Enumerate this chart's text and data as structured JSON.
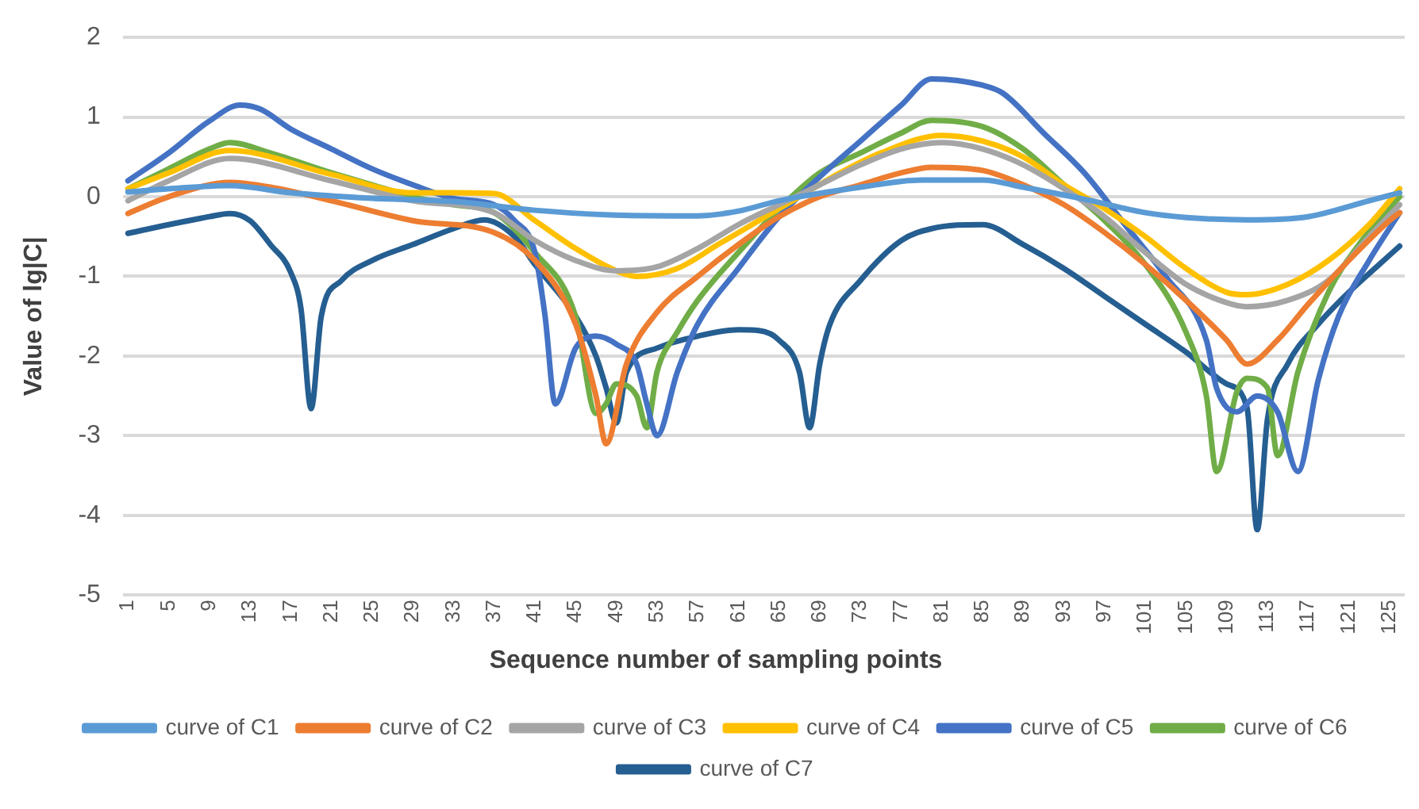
{
  "chart_data": {
    "type": "line",
    "xlabel": "Sequence number of sampling points",
    "ylabel": "Value of lg|C|",
    "xlim": [
      0.5,
      126.5
    ],
    "xticks": [
      1,
      5,
      9,
      13,
      17,
      21,
      25,
      29,
      33,
      37,
      41,
      45,
      49,
      53,
      57,
      61,
      65,
      69,
      73,
      77,
      81,
      85,
      89,
      93,
      97,
      101,
      105,
      109,
      113,
      117,
      121,
      125
    ],
    "ylim": [
      -5,
      2
    ],
    "yticks": [
      -5,
      -4,
      -3,
      -2,
      -1,
      0,
      1,
      2
    ],
    "grid": "y",
    "legend": "bottom",
    "series": [
      {
        "name": "curve of C1",
        "color": "#5b9bd5",
        "x": [
          1,
          5,
          11,
          17,
          25,
          33,
          41,
          49,
          57,
          61,
          65,
          73,
          79,
          85,
          89,
          95,
          101,
          105,
          111,
          117,
          123,
          126
        ],
        "values": [
          0.06,
          0.1,
          0.14,
          0.05,
          -0.02,
          -0.06,
          -0.17,
          -0.23,
          -0.24,
          -0.18,
          -0.05,
          0.12,
          0.21,
          0.21,
          0.12,
          -0.03,
          -0.2,
          -0.26,
          -0.29,
          -0.25,
          -0.05,
          0.05
        ]
      },
      {
        "name": "curve of C2",
        "color": "#ed7d31",
        "x": [
          1,
          5,
          11,
          15,
          21,
          29,
          37,
          41,
          45,
          47,
          48,
          50,
          53,
          57,
          61,
          65,
          69,
          73,
          77,
          80,
          85,
          89,
          93,
          97,
          101,
          105,
          109,
          111,
          114,
          117,
          121,
          125,
          126
        ],
        "values": [
          -0.21,
          0.0,
          0.18,
          0.12,
          -0.05,
          -0.3,
          -0.45,
          -0.8,
          -1.6,
          -2.5,
          -3.1,
          -2.1,
          -1.45,
          -1.0,
          -0.6,
          -0.25,
          0.0,
          0.15,
          0.3,
          0.37,
          0.33,
          0.15,
          -0.1,
          -0.45,
          -0.85,
          -1.3,
          -1.8,
          -2.1,
          -1.8,
          -1.35,
          -0.8,
          -0.3,
          -0.2
        ]
      },
      {
        "name": "curve of C3",
        "color": "#a5a5a5",
        "x": [
          1,
          5,
          11,
          21,
          29,
          37,
          41,
          45,
          49,
          53,
          57,
          61,
          65,
          69,
          73,
          77,
          81,
          85,
          89,
          93,
          97,
          101,
          105,
          109,
          111,
          115,
          119,
          123,
          126
        ],
        "values": [
          -0.05,
          0.2,
          0.48,
          0.2,
          -0.05,
          -0.2,
          -0.55,
          -0.8,
          -0.93,
          -0.88,
          -0.65,
          -0.35,
          -0.1,
          0.15,
          0.4,
          0.6,
          0.68,
          0.6,
          0.4,
          0.1,
          -0.25,
          -0.7,
          -1.1,
          -1.33,
          -1.38,
          -1.3,
          -1.05,
          -0.5,
          -0.1
        ]
      },
      {
        "name": "curve of C4",
        "color": "#ffc000",
        "x": [
          1,
          5,
          11,
          21,
          29,
          33,
          37,
          41,
          45,
          49,
          51,
          55,
          59,
          63,
          67,
          71,
          75,
          81,
          85,
          89,
          93,
          97,
          101,
          105,
          109,
          111,
          115,
          119,
          123,
          126
        ],
        "values": [
          0.1,
          0.3,
          0.58,
          0.28,
          0.05,
          0.05,
          0.04,
          -0.3,
          -0.65,
          -0.93,
          -1.0,
          -0.9,
          -0.6,
          -0.3,
          0.0,
          0.3,
          0.55,
          0.77,
          0.7,
          0.5,
          0.15,
          -0.15,
          -0.5,
          -0.9,
          -1.2,
          -1.23,
          -1.1,
          -0.8,
          -0.35,
          0.1
        ]
      },
      {
        "name": "curve of C5",
        "color": "#4472c4",
        "x": [
          1,
          5,
          9,
          12,
          14,
          17,
          21,
          25,
          29,
          33,
          37,
          39,
          41,
          42,
          43,
          45,
          47,
          49,
          51,
          52,
          53,
          55,
          57,
          61,
          65,
          69,
          73,
          77,
          80,
          85,
          87,
          91,
          95,
          99,
          103,
          107,
          108,
          110,
          112,
          114,
          116,
          118,
          120,
          123,
          126
        ],
        "values": [
          0.2,
          0.55,
          0.95,
          1.15,
          1.1,
          0.85,
          0.6,
          0.35,
          0.15,
          -0.02,
          -0.1,
          -0.3,
          -0.7,
          -1.5,
          -2.6,
          -1.9,
          -1.75,
          -1.85,
          -2.1,
          -2.6,
          -3.0,
          -2.2,
          -1.6,
          -0.9,
          -0.25,
          0.25,
          0.7,
          1.15,
          1.48,
          1.4,
          1.3,
          0.8,
          0.3,
          -0.35,
          -1.0,
          -1.8,
          -2.4,
          -2.7,
          -2.5,
          -2.7,
          -3.45,
          -2.3,
          -1.5,
          -0.8,
          -0.2
        ]
      },
      {
        "name": "curve of C6",
        "color": "#70ad47",
        "x": [
          1,
          5,
          9,
          11,
          15,
          21,
          25,
          29,
          33,
          37,
          41,
          45,
          47,
          48,
          49,
          51,
          52,
          53,
          55,
          57,
          61,
          65,
          69,
          73,
          77,
          80,
          85,
          89,
          93,
          97,
          101,
          105,
          107,
          108,
          110,
          111,
          113,
          114,
          116,
          119,
          122,
          126
        ],
        "values": [
          0.1,
          0.35,
          0.6,
          0.68,
          0.55,
          0.3,
          0.15,
          0.0,
          -0.1,
          -0.2,
          -0.7,
          -1.5,
          -2.72,
          -2.6,
          -2.35,
          -2.5,
          -2.9,
          -2.2,
          -1.7,
          -1.3,
          -0.7,
          -0.15,
          0.3,
          0.55,
          0.8,
          0.96,
          0.88,
          0.6,
          0.15,
          -0.3,
          -0.85,
          -1.7,
          -2.5,
          -3.45,
          -2.45,
          -2.28,
          -2.4,
          -3.25,
          -2.2,
          -1.2,
          -0.6,
          0.0
        ]
      },
      {
        "name": "curve of C7",
        "color": "#255e91",
        "x": [
          1,
          5,
          9,
          11,
          13,
          15,
          17,
          18,
          19,
          20,
          22,
          25,
          29,
          33,
          36,
          39,
          41,
          45,
          47,
          48,
          49,
          50,
          53,
          57,
          61,
          63,
          65,
          67,
          68,
          69,
          70,
          73,
          77,
          80,
          85,
          89,
          93,
          97,
          101,
          105,
          109,
          111,
          112,
          113,
          115,
          118,
          121,
          124,
          126
        ],
        "values": [
          -0.46,
          -0.35,
          -0.25,
          -0.21,
          -0.3,
          -0.6,
          -0.95,
          -1.4,
          -2.66,
          -1.5,
          -1.05,
          -0.8,
          -0.6,
          -0.4,
          -0.29,
          -0.5,
          -0.85,
          -1.5,
          -2.0,
          -2.4,
          -2.84,
          -2.2,
          -1.9,
          -1.75,
          -1.67,
          -1.68,
          -1.8,
          -2.2,
          -2.9,
          -2.1,
          -1.6,
          -1.05,
          -0.55,
          -0.4,
          -0.35,
          -0.6,
          -0.9,
          -1.25,
          -1.6,
          -1.95,
          -2.35,
          -2.65,
          -4.18,
          -2.8,
          -2.1,
          -1.6,
          -1.2,
          -0.85,
          -0.62
        ]
      }
    ]
  }
}
